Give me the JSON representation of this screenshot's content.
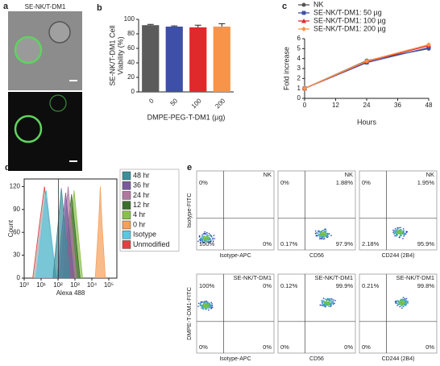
{
  "panel_labels": [
    "a",
    "b",
    "c",
    "d",
    "e"
  ],
  "panel_a": {
    "label": "SE-NK/T-DM1"
  },
  "chart_data": [
    {
      "type": "bar",
      "ylabel": [
        "SE-NK/T-DM1 Cell",
        "Viability (%)"
      ],
      "xlabel": "DMPE-PEG-T-DM1 (µg)",
      "categories": [
        "0",
        "50",
        "100",
        "200"
      ],
      "values": [
        92,
        90,
        89,
        90
      ],
      "errors": [
        1,
        1,
        3,
        4
      ],
      "colors": [
        "#5b5b5b",
        "#3d4fa6",
        "#e0292b",
        "#f7944a"
      ],
      "ylim": [
        0,
        100
      ],
      "yticks": [
        0,
        20,
        40,
        60,
        80,
        100
      ]
    },
    {
      "type": "line",
      "xlabel": "Hours",
      "ylabel": "Fold increase",
      "x": [
        0,
        24,
        48
      ],
      "series": [
        {
          "name": "NK",
          "color": "#555555",
          "values": [
            1,
            3.8,
            5.0
          ]
        },
        {
          "name": "SE-NK/T-DM1: 50 µg",
          "color": "#3d4fa6",
          "values": [
            1,
            3.6,
            5.1
          ]
        },
        {
          "name": "SE-NK/T-DM1: 100 µg",
          "color": "#e0292b",
          "values": [
            1,
            3.7,
            5.3
          ]
        },
        {
          "name": "SE-NK/T-DM1: 200 µg",
          "color": "#f7944a",
          "values": [
            1,
            3.75,
            5.4
          ]
        }
      ],
      "xlim": [
        0,
        48
      ],
      "xticks": [
        0,
        12,
        24,
        36,
        48
      ],
      "ylim": [
        0,
        6
      ],
      "yticks": [
        0,
        1,
        2,
        3,
        4,
        5,
        6
      ]
    },
    {
      "type": "area",
      "xlabel": "Alexa 488",
      "ylabel": "Count",
      "xscale": "log",
      "xlim": [
        1,
        300000
      ],
      "xticks": [
        {
          "value": 1,
          "label": "10⁰"
        },
        {
          "value": 10,
          "label": "10¹"
        },
        {
          "value": 100,
          "label": "10²"
        },
        {
          "value": 1000,
          "label": "10³"
        },
        {
          "value": 10000,
          "label": "10⁴"
        },
        {
          "value": 100000,
          "label": "10⁵"
        }
      ],
      "ylim": [
        0,
        130
      ],
      "yticks": [
        0,
        30,
        60,
        90,
        120
      ],
      "series": [
        {
          "name": "48 hr",
          "color": "#3a8f9a",
          "x": [
            50,
            100,
            158,
            251,
            501
          ],
          "values": [
            0,
            70,
            118,
            70,
            0
          ]
        },
        {
          "name": "36 hr",
          "color": "#7a5a9a",
          "x": [
            89,
            178,
            282,
            447,
            891
          ],
          "values": [
            0,
            67,
            112,
            67,
            0
          ]
        },
        {
          "name": "24 hr",
          "color": "#b07aa0",
          "x": [
            126,
            251,
            398,
            631,
            1259
          ],
          "values": [
            0,
            72,
            120,
            72,
            0
          ]
        },
        {
          "name": "12 hr",
          "color": "#3c6e2e",
          "x": [
            200,
            398,
            631,
            1000,
            2000
          ],
          "values": [
            0,
            66,
            110,
            66,
            0
          ]
        },
        {
          "name": "4 hr",
          "color": "#8ac04a",
          "x": [
            282,
            562,
            891,
            1413,
            2818
          ],
          "values": [
            0,
            69,
            115,
            69,
            0
          ]
        },
        {
          "name": "0 hr",
          "color": "#f5a05a",
          "x": [
            15849,
            25119,
            31623,
            39811,
            63096
          ],
          "values": [
            0,
            72,
            120,
            72,
            0
          ]
        },
        {
          "name": "Isotype",
          "color": "#5ac8e0",
          "x": [
            5,
            11.2,
            20,
            35.5,
            79
          ],
          "values": [
            0,
            65,
            115,
            65,
            0
          ]
        },
        {
          "name": "Unmodified",
          "color": "#e04040",
          "fill": "#a8a8a8",
          "x": [
            3.2,
            7.9,
            15.8,
            31.6,
            79
          ],
          "values": [
            0,
            70,
            120,
            70,
            0
          ]
        }
      ]
    }
  ],
  "panel_e": {
    "rows": [
      {
        "title": "NK",
        "ylabel": "Isotype-FITC",
        "plots": [
          {
            "xlabel": "Isotype-APC",
            "quadrants": {
              "ul": "0%",
              "ll": "100%",
              "lr": "0%"
            }
          },
          {
            "xlabel": "CD56",
            "quadrants": {
              "ul": "0%",
              "ur": "1.88%",
              "ll": "0.17%",
              "lr": "97.9%"
            }
          },
          {
            "xlabel": "CD244 (2B4)",
            "quadrants": {
              "ul": "0%",
              "ur": "1.95%",
              "ll": "2.18%",
              "lr": "95.9%"
            }
          }
        ]
      },
      {
        "title": "SE-NK/T-DM1",
        "ylabel": "DMPE-T-DM1-FITC",
        "plots": [
          {
            "xlabel": "Isotype-APC",
            "quadrants": {
              "ul": "100%",
              "ur": "0%",
              "ll": "0%",
              "lr": "0%"
            }
          },
          {
            "xlabel": "CD56",
            "quadrants": {
              "ul": "0.12%",
              "ur": "99.9%",
              "ll": "0%",
              "lr": "0%"
            }
          },
          {
            "xlabel": "CD244 (2B4)",
            "quadrants": {
              "ul": "0.21%",
              "ur": "99.8%",
              "ll": "0%",
              "lr": "0%"
            }
          }
        ]
      }
    ]
  }
}
